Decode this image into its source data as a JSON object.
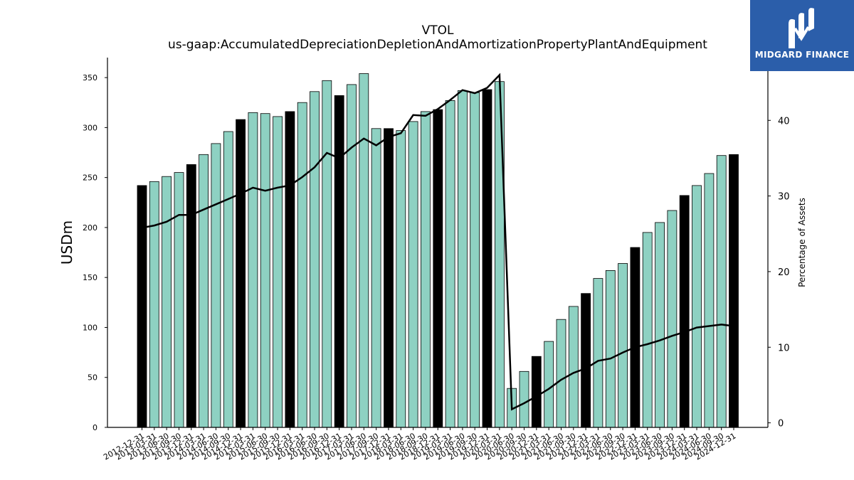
{
  "brand": {
    "name": "MIDGARD FINANCE",
    "logo_icon": "midgard-m-logo-icon",
    "bg_color": "#2b5eaa"
  },
  "chart_data": {
    "type": "bar",
    "title": "VTOL",
    "subtitle": "us-gaap:AccumulatedDepreciationDepletionAndAmortizationPropertyPlantAndEquipment",
    "ylabel": "USDm",
    "y2label": "Percentage of Assets",
    "ylim": [
      0,
      370
    ],
    "y2lim": [
      -0.6,
      48.3
    ],
    "yticks": [
      0,
      50,
      100,
      150,
      200,
      250,
      300,
      350
    ],
    "y2ticks": [
      0,
      10,
      20,
      30,
      40
    ],
    "grid": false,
    "colors": {
      "quarter": "#8ed1c2",
      "year_end": "#000000",
      "line": "#000000"
    },
    "categories": [
      "2012-12-31",
      "2013-03-31",
      "2013-06-30",
      "2013-09-30",
      "2013-12-31",
      "2014-03-31",
      "2014-06-30",
      "2014-09-30",
      "2014-12-31",
      "2015-03-31",
      "2015-06-30",
      "2015-09-30",
      "2015-12-31",
      "2016-03-31",
      "2016-06-30",
      "2016-09-30",
      "2016-12-31",
      "2017-03-31",
      "2017-06-30",
      "2017-09-30",
      "2017-12-31",
      "2018-03-31",
      "2018-06-30",
      "2018-09-30",
      "2018-12-31",
      "2019-03-31",
      "2019-06-30",
      "2019-09-30",
      "2019-12-31",
      "2020-03-31",
      "2020-06-30",
      "2020-09-30",
      "2020-12-31",
      "2021-03-31",
      "2021-06-30",
      "2021-09-30",
      "2021-12-31",
      "2022-03-31",
      "2022-06-30",
      "2022-09-30",
      "2022-12-31",
      "2023-03-31",
      "2023-06-30",
      "2023-09-30",
      "2023-12-31",
      "2024-03-31",
      "2024-06-30",
      "2024-09-30",
      "2024-12-31"
    ],
    "series": [
      {
        "kind": "bar",
        "values": [
          242,
          246,
          251,
          255,
          263,
          273,
          284,
          296,
          308,
          315,
          314,
          311,
          316,
          325,
          336,
          347,
          332,
          343,
          354,
          299,
          299,
          297,
          306,
          316,
          318,
          327,
          337,
          335,
          338,
          346,
          39,
          56,
          71,
          86,
          108,
          121,
          134,
          149,
          157,
          164,
          180,
          195,
          205,
          217,
          232,
          242,
          254,
          272,
          273
        ]
      },
      {
        "kind": "line",
        "axis": "right",
        "values": [
          25.8,
          26.1,
          26.6,
          27.5,
          27.5,
          28.2,
          28.9,
          29.6,
          30.3,
          31.1,
          30.7,
          31.1,
          31.4,
          32.5,
          33.8,
          35.7,
          35.0,
          36.4,
          37.6,
          36.7,
          37.8,
          38.3,
          40.7,
          40.6,
          41.5,
          42.7,
          44.0,
          43.6,
          44.3,
          46.0,
          1.8,
          2.6,
          3.5,
          4.5,
          5.7,
          6.6,
          7.2,
          8.2,
          8.5,
          9.3,
          10.0,
          10.4,
          10.9,
          11.5,
          12.0,
          12.6,
          12.8,
          13.0,
          12.8
        ]
      }
    ]
  }
}
